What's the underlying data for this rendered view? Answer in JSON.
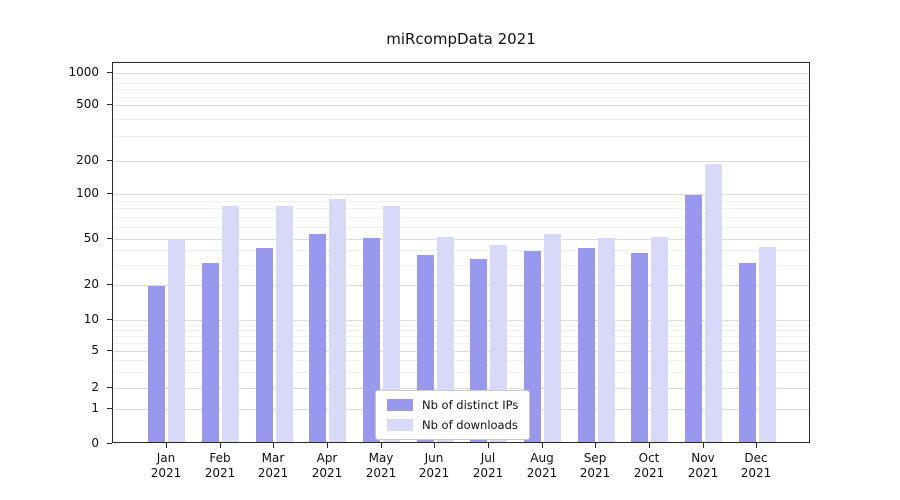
{
  "chart_data": {
    "type": "bar",
    "title": "miRcompData 2021",
    "categories": [
      "Jan",
      "Feb",
      "Mar",
      "Apr",
      "May",
      "Jun",
      "Jul",
      "Aug",
      "Sep",
      "Oct",
      "Nov",
      "Dec"
    ],
    "x_sub_label": "2021",
    "series": [
      {
        "name": "Nb of distinct IPs",
        "color": "#9898ee",
        "values": [
          19,
          30,
          40,
          52,
          49,
          35,
          32,
          38,
          40,
          36,
          95,
          30
        ]
      },
      {
        "name": "Nb of downloads",
        "color": "#d8d8f8",
        "values": [
          47,
          80,
          80,
          90,
          80,
          50,
          43,
          52,
          49,
          50,
          180,
          41
        ]
      }
    ],
    "y_ticks": [
      0,
      1,
      2,
      5,
      10,
      20,
      50,
      100,
      200,
      500,
      1000
    ],
    "y_scale": "log",
    "ylim": [
      0,
      1000
    ],
    "grid": true,
    "legend_position": "lower center"
  }
}
